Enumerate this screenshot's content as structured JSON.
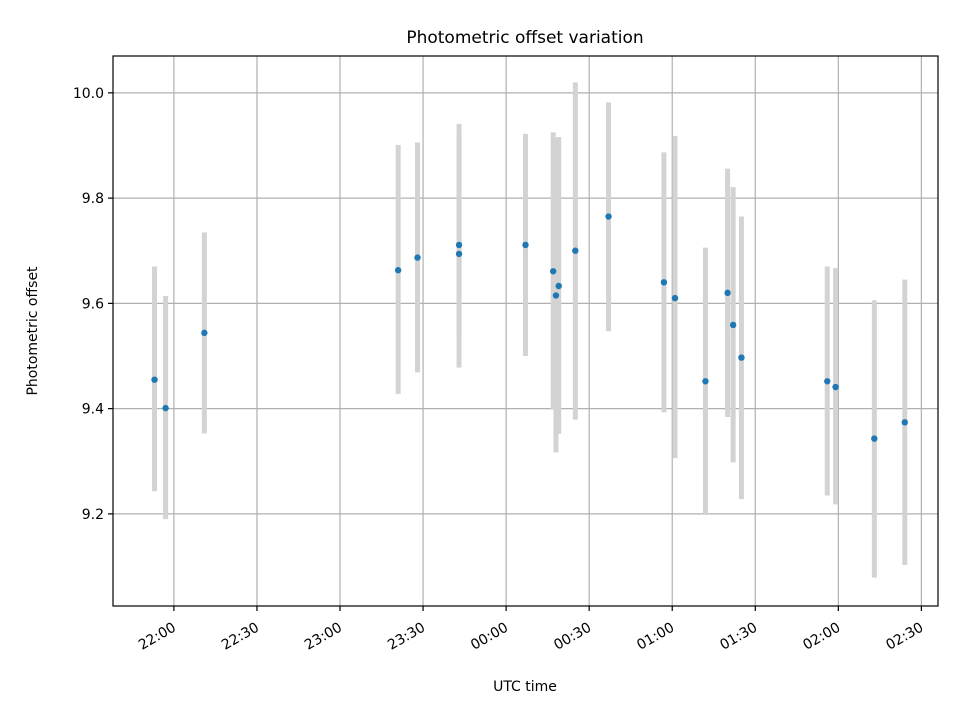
{
  "chart_data": {
    "type": "scatter",
    "title": "Photometric offset variation",
    "xlabel": "UTC time",
    "ylabel": "Photometric offset",
    "xlim": [
      "21:38",
      "02:36"
    ],
    "ylim": [
      9.025,
      10.07
    ],
    "grid": true,
    "x_ticks": [
      "22:00",
      "22:30",
      "23:00",
      "23:30",
      "00:00",
      "00:30",
      "01:00",
      "01:30",
      "02:00",
      "02:30"
    ],
    "y_ticks": [
      "9.2",
      "9.4",
      "9.6",
      "9.8",
      "10.0"
    ],
    "colors": {
      "marker": "#1f77b4",
      "errorbar": "#d3d3d3",
      "grid": "#b0b0b0"
    },
    "points": [
      {
        "x": "21:53",
        "y": 9.455,
        "lo": 9.243,
        "hi": 9.67
      },
      {
        "x": "21:57",
        "y": 9.401,
        "lo": 9.19,
        "hi": 9.614
      },
      {
        "x": "22:11",
        "y": 9.544,
        "lo": 9.353,
        "hi": 9.735
      },
      {
        "x": "23:21",
        "y": 9.663,
        "lo": 9.428,
        "hi": 9.901
      },
      {
        "x": "23:28",
        "y": 9.687,
        "lo": 9.469,
        "hi": 9.906
      },
      {
        "x": "23:43",
        "y": 9.711,
        "lo": 9.538,
        "hi": 9.941
      },
      {
        "x": "23:43",
        "y": 9.694,
        "lo": 9.478,
        "hi": 9.917
      },
      {
        "x": "00:07",
        "y": 9.711,
        "lo": 9.5,
        "hi": 9.922
      },
      {
        "x": "00:17",
        "y": 9.661,
        "lo": 9.398,
        "hi": 9.925
      },
      {
        "x": "00:18",
        "y": 9.615,
        "lo": 9.317,
        "hi": 9.913
      },
      {
        "x": "00:19",
        "y": 9.633,
        "lo": 9.352,
        "hi": 9.916
      },
      {
        "x": "00:25",
        "y": 9.7,
        "lo": 9.379,
        "hi": 10.02
      },
      {
        "x": "00:37",
        "y": 9.765,
        "lo": 9.547,
        "hi": 9.982
      },
      {
        "x": "00:57",
        "y": 9.64,
        "lo": 9.393,
        "hi": 9.887
      },
      {
        "x": "01:01",
        "y": 9.61,
        "lo": 9.306,
        "hi": 9.918
      },
      {
        "x": "01:12",
        "y": 9.452,
        "lo": 9.198,
        "hi": 9.706
      },
      {
        "x": "01:20",
        "y": 9.62,
        "lo": 9.384,
        "hi": 9.856
      },
      {
        "x": "01:22",
        "y": 9.559,
        "lo": 9.298,
        "hi": 9.821
      },
      {
        "x": "01:25",
        "y": 9.497,
        "lo": 9.228,
        "hi": 9.765
      },
      {
        "x": "01:56",
        "y": 9.452,
        "lo": 9.235,
        "hi": 9.67
      },
      {
        "x": "01:59",
        "y": 9.441,
        "lo": 9.218,
        "hi": 9.667
      },
      {
        "x": "02:13",
        "y": 9.343,
        "lo": 9.079,
        "hi": 9.606
      },
      {
        "x": "02:24",
        "y": 9.374,
        "lo": 9.103,
        "hi": 9.645
      }
    ]
  }
}
